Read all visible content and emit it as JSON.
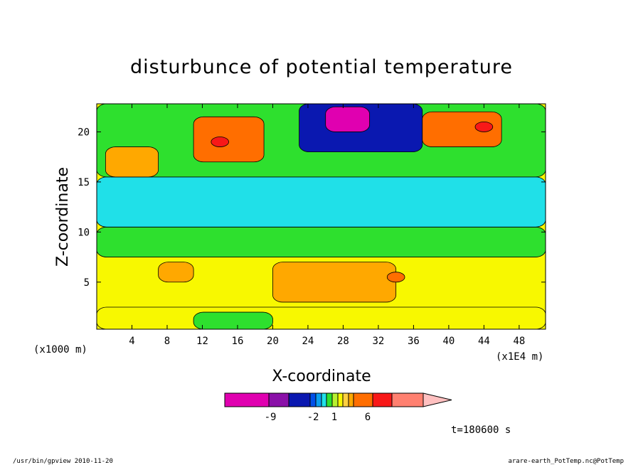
{
  "chart_data": {
    "type": "heatmap",
    "title": "disturbunce of potential temperature",
    "xlabel": "X-coordinate",
    "ylabel": "Z-coordinate",
    "x_unit_label": "(x1E4 m)",
    "y_unit_label": "(x1000 m)",
    "xlim": [
      0,
      51
    ],
    "ylim": [
      0.3,
      22.8
    ],
    "x_ticks": [
      "4",
      "8",
      "12",
      "16",
      "20",
      "24",
      "28",
      "32",
      "36",
      "40",
      "44",
      "48"
    ],
    "y_ticks": [
      "5",
      "10",
      "15",
      "20"
    ],
    "grid": false,
    "colorbar": {
      "labels": [
        "-9",
        "-2",
        "1",
        "6"
      ],
      "colors": [
        "#e000b0",
        "#8a10a8",
        "#0a18b0",
        "#0050e8",
        "#0a9ef0",
        "#20e0e8",
        "#2ee02e",
        "#b8f030",
        "#f8f800",
        "#ffd040",
        "#ffa800",
        "#ff6e00",
        "#f81818",
        "#ff8070",
        "#ffc0c0"
      ]
    },
    "time_label": "t=180600 s",
    "background_level": "#f8f800",
    "regions": [
      {
        "x": [
          0,
          51
        ],
        "y": [
          0.3,
          2.5
        ],
        "color": "#f8f800"
      },
      {
        "x": [
          0,
          51
        ],
        "y": [
          7.5,
          10.5
        ],
        "color": "#2ee02e"
      },
      {
        "x": [
          0,
          51
        ],
        "y": [
          10.5,
          15.5
        ],
        "color": "#20e0e8"
      },
      {
        "x": [
          0,
          51
        ],
        "y": [
          15.5,
          22.8
        ],
        "color": "#2ee02e"
      },
      {
        "x": [
          23,
          37
        ],
        "y": [
          18,
          22.8
        ],
        "color": "#0a18b0"
      },
      {
        "x": [
          26,
          31
        ],
        "y": [
          20,
          22.5
        ],
        "color": "#e000b0"
      },
      {
        "x": [
          11,
          19
        ],
        "y": [
          17,
          21.5
        ],
        "color": "#ff6e00"
      },
      {
        "x": [
          13,
          15
        ],
        "y": [
          18.5,
          19.5
        ],
        "color": "#f81818"
      },
      {
        "x": [
          37,
          46
        ],
        "y": [
          18.5,
          22
        ],
        "color": "#ff6e00"
      },
      {
        "x": [
          43,
          45
        ],
        "y": [
          20,
          21
        ],
        "color": "#f81818"
      },
      {
        "x": [
          1,
          7
        ],
        "y": [
          15.5,
          18.5
        ],
        "color": "#ffa800"
      },
      {
        "x": [
          20,
          34
        ],
        "y": [
          3,
          7
        ],
        "color": "#ffa800"
      },
      {
        "x": [
          7,
          11
        ],
        "y": [
          5,
          7
        ],
        "color": "#ffa800"
      },
      {
        "x": [
          11,
          20
        ],
        "y": [
          0.3,
          2
        ],
        "color": "#2ee02e"
      },
      {
        "x": [
          33,
          35
        ],
        "y": [
          5,
          6
        ],
        "color": "#ff6e00"
      }
    ]
  },
  "footer": {
    "left": "/usr/bin/gpview   2010-11-20",
    "right": "arare-earth_PotTemp.nc@PotTemp"
  }
}
